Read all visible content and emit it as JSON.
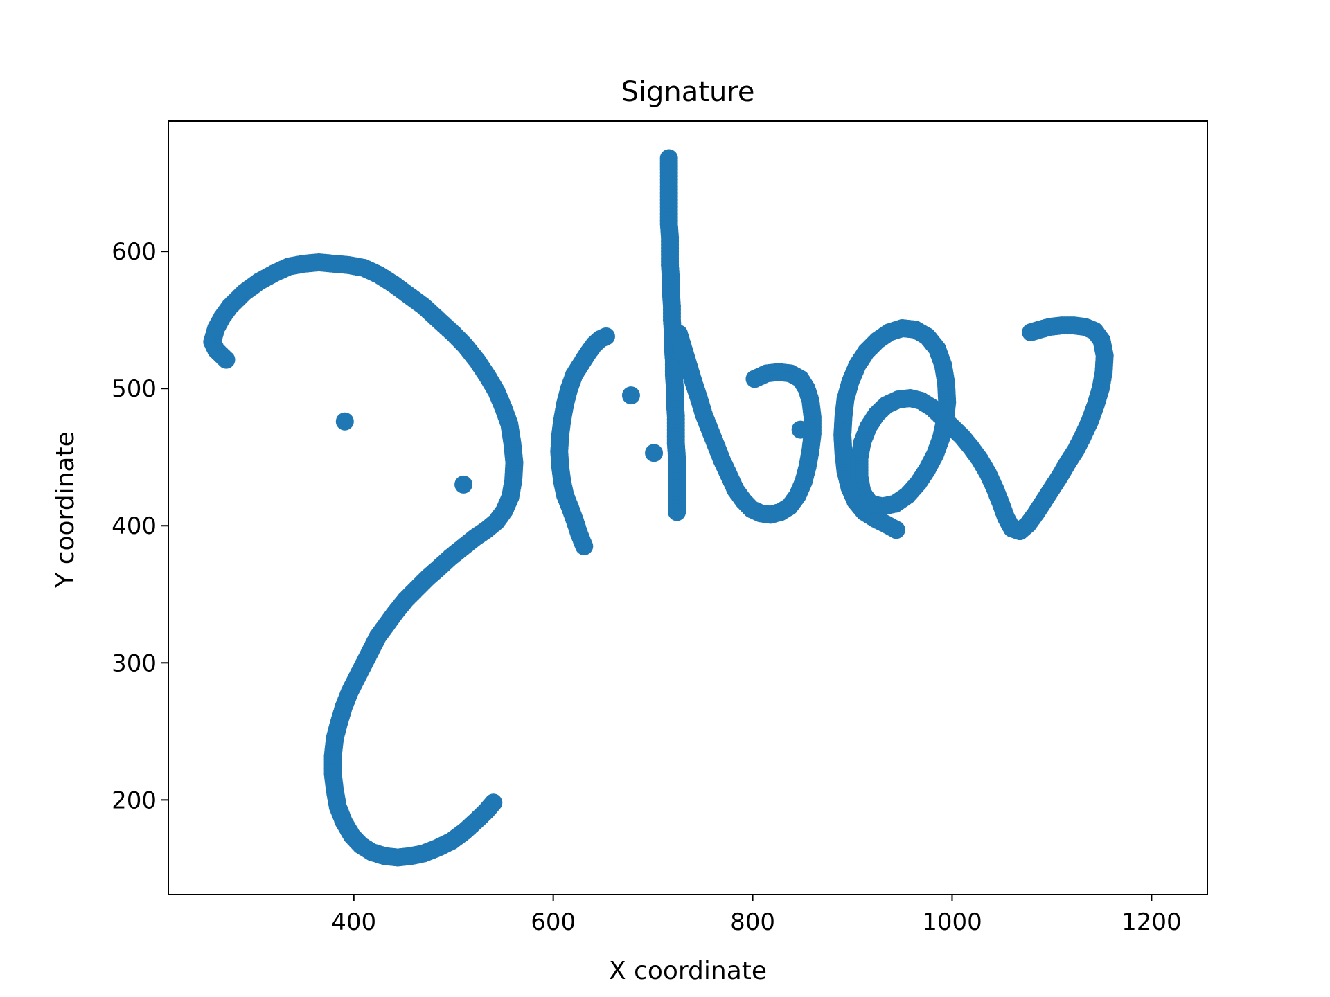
{
  "chart_data": {
    "type": "scatter",
    "title": "Signature",
    "xlabel": "X coordinate",
    "ylabel": "Y coordinate",
    "xlim": [
      214,
      1256
    ],
    "ylim": [
      131,
      695
    ],
    "xticks": [
      400,
      600,
      800,
      1000,
      1200
    ],
    "yticks": [
      200,
      300,
      400,
      500,
      600
    ],
    "grid": false,
    "marker_color": "#1f77b4",
    "strokes": [
      [
        [
          272,
          521
        ],
        [
          262,
          528
        ],
        [
          258,
          534
        ],
        [
          262,
          544
        ],
        [
          268,
          552
        ],
        [
          276,
          560
        ],
        [
          290,
          570
        ],
        [
          305,
          578
        ],
        [
          320,
          584
        ],
        [
          335,
          589
        ],
        [
          350,
          591
        ],
        [
          365,
          592
        ],
        [
          380,
          591
        ],
        [
          395,
          590
        ],
        [
          410,
          588
        ],
        [
          425,
          583
        ],
        [
          440,
          576
        ],
        [
          455,
          568
        ],
        [
          470,
          560
        ],
        [
          485,
          550
        ],
        [
          500,
          540
        ],
        [
          512,
          531
        ],
        [
          524,
          520
        ],
        [
          534,
          509
        ],
        [
          543,
          498
        ],
        [
          550,
          486
        ],
        [
          556,
          474
        ],
        [
          559,
          460
        ],
        [
          561,
          446
        ],
        [
          560,
          433
        ],
        [
          557,
          421
        ],
        [
          551,
          411
        ],
        [
          543,
          403
        ],
        [
          533,
          397
        ],
        [
          521,
          391
        ],
        [
          509,
          384
        ],
        [
          497,
          377
        ],
        [
          485,
          369
        ],
        [
          474,
          362
        ],
        [
          463,
          354
        ],
        [
          452,
          346
        ],
        [
          442,
          337
        ],
        [
          433,
          328
        ],
        [
          424,
          319
        ],
        [
          417,
          309
        ],
        [
          410,
          299
        ],
        [
          403,
          289
        ],
        [
          396,
          279
        ],
        [
          390,
          268
        ],
        [
          385,
          256
        ],
        [
          381,
          245
        ],
        [
          379,
          232
        ],
        [
          379,
          219
        ],
        [
          381,
          207
        ],
        [
          384,
          195
        ],
        [
          390,
          184
        ],
        [
          398,
          174
        ],
        [
          407,
          167
        ],
        [
          418,
          162
        ],
        [
          431,
          159
        ],
        [
          444,
          158
        ],
        [
          457,
          159
        ],
        [
          470,
          161
        ],
        [
          484,
          165
        ],
        [
          498,
          170
        ],
        [
          511,
          177
        ],
        [
          523,
          185
        ],
        [
          533,
          192
        ],
        [
          540,
          198
        ]
      ],
      [
        [
          631,
          385
        ],
        [
          626,
          394
        ],
        [
          622,
          403
        ],
        [
          617,
          413
        ],
        [
          612,
          422
        ],
        [
          609,
          432
        ],
        [
          607,
          443
        ],
        [
          606,
          454
        ],
        [
          607,
          466
        ],
        [
          609,
          477
        ],
        [
          612,
          489
        ],
        [
          616,
          500
        ],
        [
          621,
          510
        ],
        [
          628,
          518
        ],
        [
          635,
          526
        ],
        [
          641,
          532
        ],
        [
          647,
          536
        ],
        [
          653,
          538
        ]
      ],
      [
        [
          724,
          410
        ],
        [
          724,
          420
        ],
        [
          724,
          430
        ],
        [
          724,
          440
        ],
        [
          724,
          450
        ],
        [
          723,
          460
        ],
        [
          723,
          470
        ],
        [
          723,
          480
        ],
        [
          722,
          490
        ],
        [
          722,
          500
        ],
        [
          721,
          510
        ],
        [
          721,
          520
        ],
        [
          720,
          530
        ],
        [
          720,
          540
        ],
        [
          719,
          550
        ],
        [
          719,
          560
        ],
        [
          718,
          570
        ],
        [
          718,
          580
        ],
        [
          717,
          590
        ],
        [
          717,
          600
        ],
        [
          717,
          610
        ],
        [
          716,
          620
        ],
        [
          716,
          630
        ],
        [
          716,
          640
        ],
        [
          716,
          650
        ],
        [
          716,
          660
        ],
        [
          716,
          668
        ]
      ],
      [
        [
          726,
          540
        ],
        [
          731,
          528
        ],
        [
          736,
          516
        ],
        [
          741,
          504
        ],
        [
          746,
          493
        ],
        [
          751,
          481
        ],
        [
          757,
          470
        ],
        [
          763,
          459
        ],
        [
          769,
          448
        ],
        [
          776,
          437
        ],
        [
          783,
          426
        ],
        [
          791,
          418
        ],
        [
          799,
          412
        ],
        [
          808,
          409
        ],
        [
          818,
          408
        ],
        [
          828,
          410
        ],
        [
          837,
          414
        ],
        [
          845,
          422
        ],
        [
          851,
          432
        ],
        [
          855,
          443
        ],
        [
          858,
          455
        ],
        [
          860,
          467
        ],
        [
          860,
          479
        ],
        [
          858,
          491
        ],
        [
          854,
          500
        ],
        [
          848,
          507
        ],
        [
          838,
          511
        ],
        [
          826,
          512
        ],
        [
          814,
          511
        ],
        [
          802,
          507
        ]
      ],
      [
        [
          944,
          397
        ],
        [
          934,
          401
        ],
        [
          923,
          405
        ],
        [
          912,
          410
        ],
        [
          903,
          418
        ],
        [
          897,
          428
        ],
        [
          893,
          440
        ],
        [
          891,
          453
        ],
        [
          890,
          466
        ],
        [
          891,
          479
        ],
        [
          893,
          492
        ],
        [
          898,
          505
        ],
        [
          905,
          517
        ],
        [
          914,
          527
        ],
        [
          925,
          535
        ],
        [
          937,
          541
        ],
        [
          950,
          544
        ],
        [
          963,
          543
        ],
        [
          975,
          538
        ],
        [
          985,
          529
        ],
        [
          991,
          517
        ],
        [
          994,
          504
        ],
        [
          995,
          490
        ],
        [
          993,
          477
        ],
        [
          989,
          464
        ],
        [
          983,
          452
        ],
        [
          975,
          441
        ],
        [
          966,
          431
        ],
        [
          955,
          422
        ],
        [
          943,
          416
        ],
        [
          930,
          414
        ],
        [
          918,
          416
        ],
        [
          910,
          424
        ],
        [
          907,
          436
        ],
        [
          907,
          449
        ],
        [
          910,
          461
        ],
        [
          916,
          472
        ],
        [
          924,
          481
        ],
        [
          934,
          488
        ],
        [
          946,
          492
        ],
        [
          958,
          493
        ],
        [
          969,
          491
        ],
        [
          980,
          486
        ],
        [
          990,
          479
        ],
        [
          1000,
          472
        ],
        [
          1010,
          465
        ],
        [
          1019,
          457
        ],
        [
          1028,
          448
        ],
        [
          1036,
          438
        ],
        [
          1043,
          427
        ],
        [
          1049,
          416
        ],
        [
          1054,
          406
        ],
        [
          1060,
          398
        ],
        [
          1068,
          396
        ],
        [
          1076,
          401
        ],
        [
          1084,
          409
        ],
        [
          1092,
          418
        ],
        [
          1100,
          427
        ],
        [
          1108,
          436
        ],
        [
          1116,
          446
        ],
        [
          1124,
          455
        ],
        [
          1131,
          465
        ],
        [
          1138,
          476
        ],
        [
          1144,
          488
        ],
        [
          1149,
          500
        ],
        [
          1152,
          512
        ],
        [
          1153,
          524
        ],
        [
          1150,
          535
        ],
        [
          1143,
          542
        ],
        [
          1133,
          545
        ],
        [
          1122,
          546
        ],
        [
          1110,
          546
        ],
        [
          1098,
          545
        ],
        [
          1088,
          543
        ],
        [
          1079,
          541
        ]
      ]
    ],
    "isolated_points": [
      [
        391,
        476
      ],
      [
        510,
        430
      ],
      [
        678,
        495
      ],
      [
        701,
        453
      ],
      [
        848,
        470
      ]
    ]
  }
}
